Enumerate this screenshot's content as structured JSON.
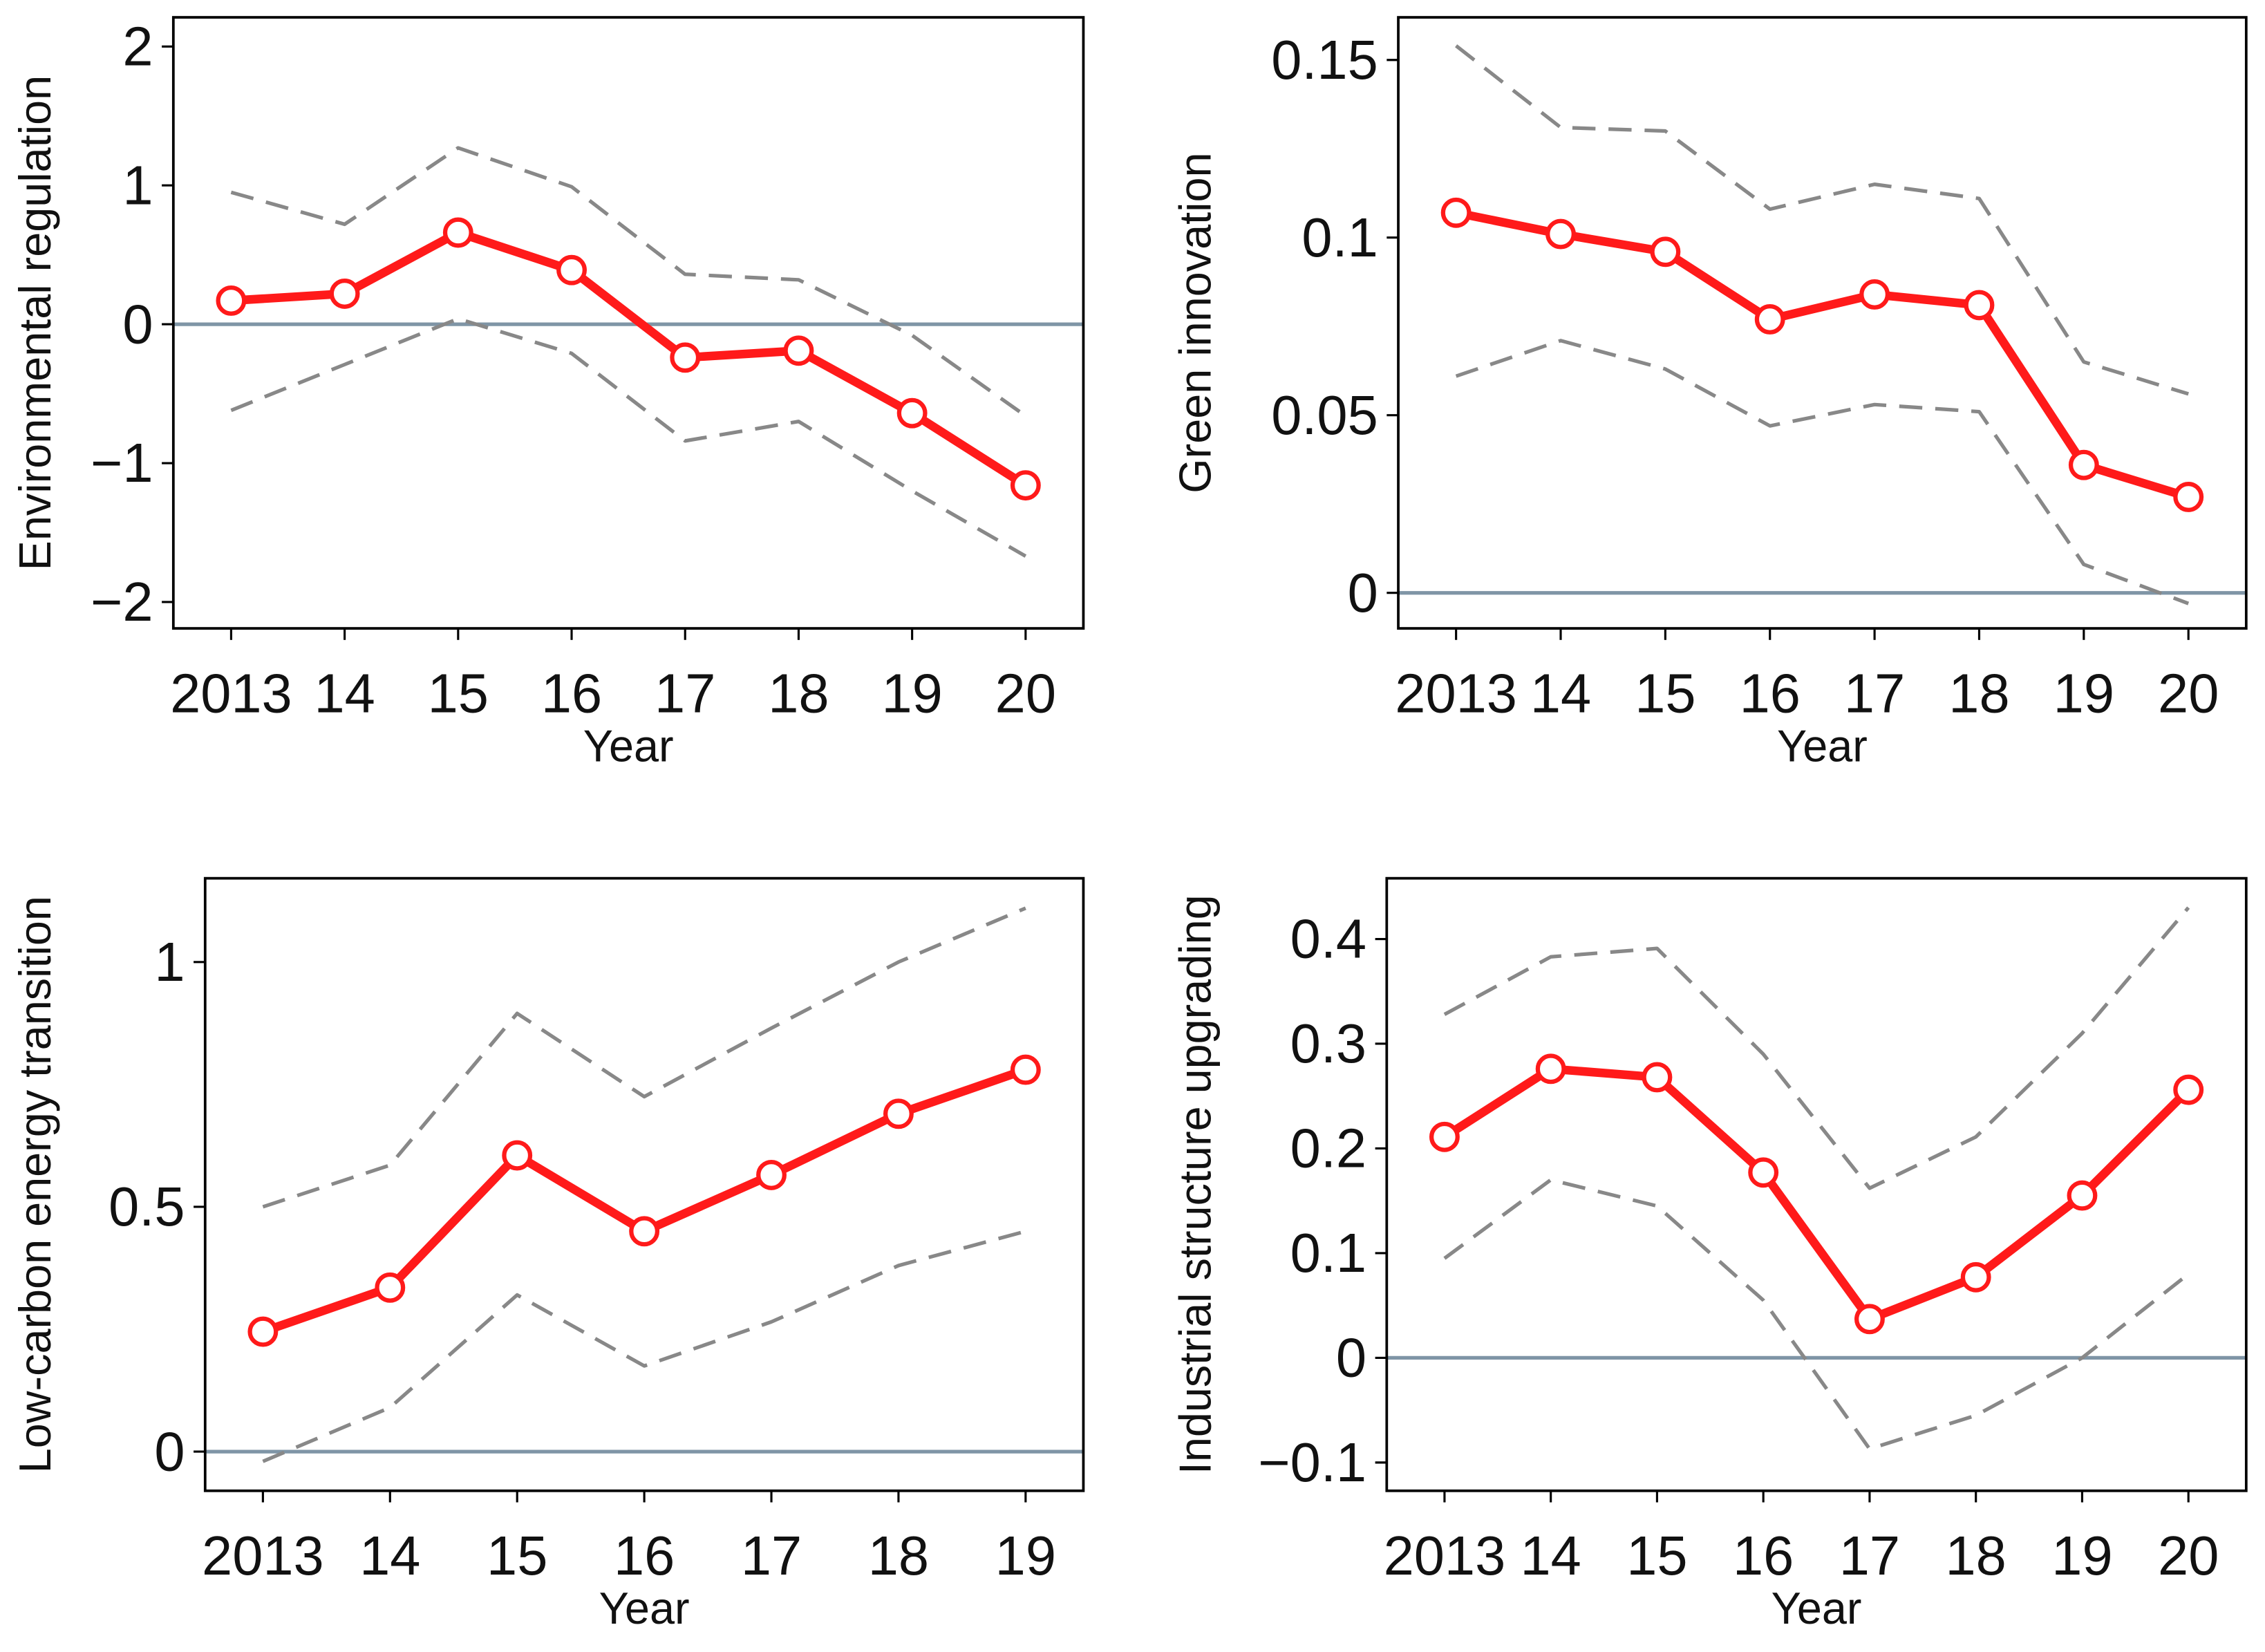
{
  "chart_data": [
    {
      "type": "line",
      "ylabel": "Environmental regulation",
      "xlabel": "Year",
      "categories": [
        "2013",
        "14",
        "15",
        "16",
        "17",
        "18",
        "19",
        "20"
      ],
      "series": [
        {
          "color": "#888888",
          "dash": true,
          "values": [
            0.95,
            0.72,
            1.27,
            0.99,
            0.36,
            0.32,
            -0.08,
            -0.66
          ]
        },
        {
          "color": "#888888",
          "dash": true,
          "values": [
            -0.62,
            -0.29,
            0.04,
            -0.21,
            -0.84,
            -0.7,
            -1.2,
            -1.67
          ]
        },
        {
          "color": "#ff1a1a",
          "marker": "circle",
          "values": [
            0.17,
            0.22,
            0.66,
            0.39,
            -0.24,
            -0.19,
            -0.64,
            -1.16
          ]
        }
      ],
      "ylim": [
        -2.19,
        2.21
      ],
      "yticks": [
        {
          "value": -2,
          "label": "−2"
        },
        {
          "value": -1,
          "label": "−1"
        },
        0,
        1,
        2
      ],
      "reference_line": 0
    },
    {
      "type": "line",
      "ylabel": "Green innovation",
      "xlabel": "Year",
      "categories": [
        "2013",
        "14",
        "15",
        "16",
        "17",
        "18",
        "19",
        "20"
      ],
      "series": [
        {
          "color": "#888888",
          "dash": true,
          "values": [
            0.154,
            0.131,
            0.13,
            0.108,
            0.115,
            0.111,
            0.065,
            0.056
          ]
        },
        {
          "color": "#888888",
          "dash": true,
          "values": [
            0.061,
            0.071,
            0.063,
            0.047,
            0.053,
            0.051,
            0.008,
            -0.003
          ]
        },
        {
          "color": "#ff1a1a",
          "marker": "circle",
          "values": [
            0.107,
            0.101,
            0.096,
            0.077,
            0.084,
            0.081,
            0.036,
            0.027
          ]
        }
      ],
      "ylim": [
        -0.01,
        0.162
      ],
      "yticks": [
        0,
        0.05,
        0.1,
        0.15
      ],
      "reference_line": 0
    },
    {
      "type": "line",
      "ylabel": "Low-carbon energy transition",
      "xlabel": "Year",
      "categories": [
        "2013",
        "14",
        "15",
        "16",
        "17",
        "18",
        "19"
      ],
      "series": [
        {
          "color": "#888888",
          "dash": true,
          "values": [
            0.5,
            0.585,
            0.895,
            0.725,
            0.865,
            1.0,
            1.11
          ]
        },
        {
          "color": "#888888",
          "dash": true,
          "values": [
            -0.02,
            0.09,
            0.32,
            0.175,
            0.265,
            0.38,
            0.45
          ]
        },
        {
          "color": "#ff1a1a",
          "marker": "circle",
          "values": [
            0.245,
            0.335,
            0.605,
            0.45,
            0.565,
            0.69,
            0.78
          ]
        }
      ],
      "ylim": [
        -0.08,
        1.171
      ],
      "yticks": [
        0,
        0.5,
        1
      ],
      "reference_line": 0
    },
    {
      "type": "line",
      "ylabel": "Industrial structure upgrading",
      "xlabel": "Year",
      "categories": [
        "2013",
        "14",
        "15",
        "16",
        "17",
        "18",
        "19",
        "20"
      ],
      "series": [
        {
          "color": "#888888",
          "dash": true,
          "values": [
            0.328,
            0.383,
            0.391,
            0.29,
            0.162,
            0.211,
            0.31,
            0.43
          ]
        },
        {
          "color": "#888888",
          "dash": true,
          "values": [
            0.095,
            0.17,
            0.145,
            0.055,
            -0.087,
            -0.055,
            0,
            0.08
          ]
        },
        {
          "color": "#ff1a1a",
          "marker": "circle",
          "values": [
            0.211,
            0.276,
            0.268,
            0.177,
            0.037,
            0.077,
            0.155,
            0.256
          ]
        }
      ],
      "ylim": [
        -0.127,
        0.458
      ],
      "yticks": [
        {
          "value": -0.1,
          "label": "−0.1"
        },
        0,
        0.1,
        0.2,
        0.3,
        0.4
      ],
      "reference_line": 0
    }
  ]
}
